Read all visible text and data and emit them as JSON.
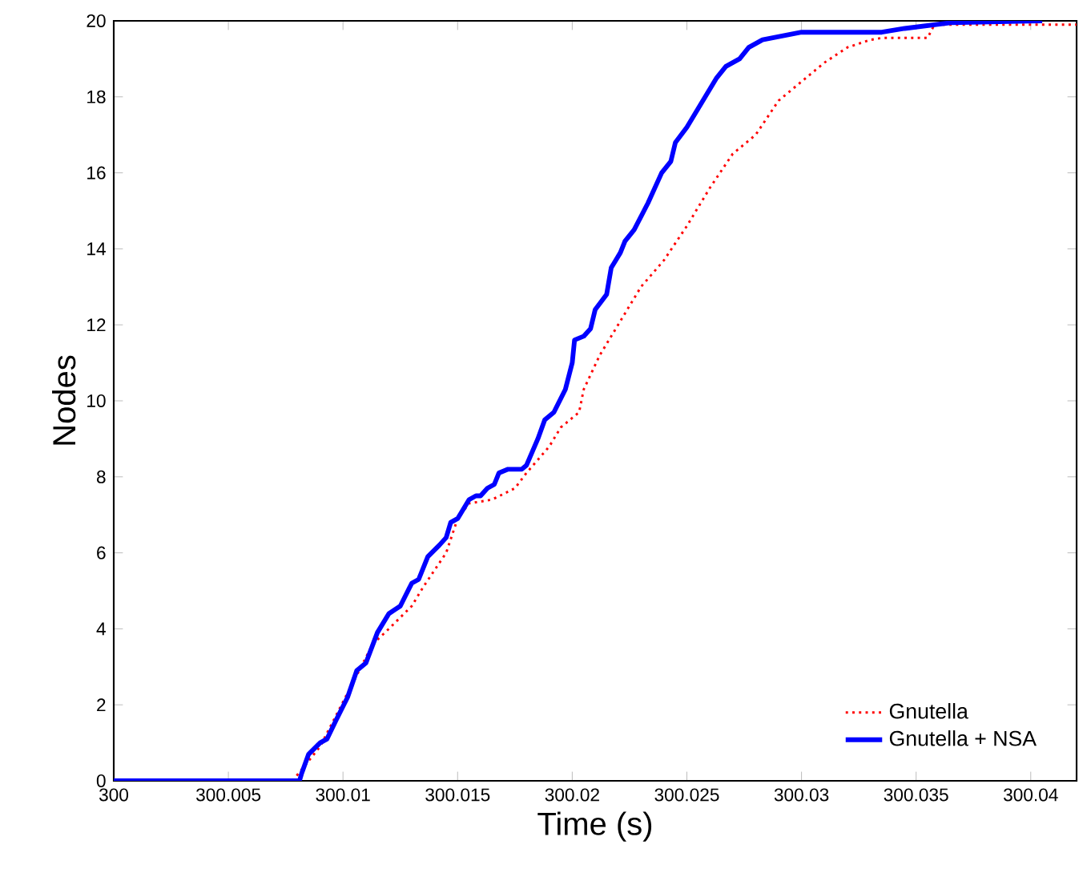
{
  "chart_data": {
    "type": "line",
    "xlabel": "Time (s)",
    "ylabel": "Nodes",
    "xlim": [
      300,
      300.042
    ],
    "ylim": [
      0,
      20
    ],
    "xticks": [
      300,
      300.005,
      300.01,
      300.015,
      300.02,
      300.025,
      300.03,
      300.035,
      300.04
    ],
    "yticks": [
      0,
      2,
      4,
      6,
      8,
      10,
      12,
      14,
      16,
      18,
      20
    ],
    "grid": false,
    "legend": "bottom right",
    "marker": "none",
    "series": [
      {
        "name": "Gnutella",
        "color": "#ff0000",
        "line_style": "dotted",
        "x": [
          300,
          300.0078,
          300.0082,
          300.009,
          300.0113,
          300.012,
          300.013,
          300.0135,
          300.0145,
          300.015,
          300.0155,
          300.0165,
          300.0175,
          300.018,
          300.019,
          300.0195,
          300.0203,
          300.0205,
          300.0212,
          300.022,
          300.023,
          300.024,
          300.025,
          300.026,
          300.027,
          300.028,
          300.029,
          300.03,
          300.031,
          300.032,
          300.033,
          300.0335,
          300.0355,
          300.0358,
          300.042
        ],
        "values": [
          0,
          0,
          0.3,
          0.9,
          3.6,
          4.0,
          4.6,
          5.1,
          6.0,
          6.9,
          7.3,
          7.4,
          7.7,
          8.1,
          8.8,
          9.3,
          9.7,
          10.3,
          11.2,
          12.0,
          13.0,
          13.7,
          14.6,
          15.6,
          16.5,
          17.0,
          17.9,
          18.4,
          18.9,
          19.3,
          19.5,
          19.55,
          19.55,
          19.9,
          19.9
        ]
      },
      {
        "name": "Gnutella + NSA",
        "color": "#0000ff",
        "line_style": "solid",
        "x": [
          300,
          300.0081,
          300.0082,
          300.0085,
          300.009,
          300.0093,
          300.0097,
          300.0102,
          300.0106,
          300.011,
          300.0115,
          300.012,
          300.0125,
          300.013,
          300.0133,
          300.0137,
          300.0142,
          300.0145,
          300.0147,
          300.015,
          300.0155,
          300.0158,
          300.016,
          300.0163,
          300.0166,
          300.0168,
          300.0172,
          300.0178,
          300.018,
          300.0185,
          300.0188,
          300.0192,
          300.0197,
          300.02,
          300.0201,
          300.0205,
          300.0208,
          300.021,
          300.0215,
          300.0217,
          300.0221,
          300.0223,
          300.0227,
          300.0233,
          300.0239,
          300.0243,
          300.0245,
          300.025,
          300.0255,
          300.0258,
          300.0263,
          300.0267,
          300.0273,
          300.0277,
          300.0283,
          300.03,
          300.0335,
          300.0345,
          300.0365,
          300.0405
        ],
        "values": [
          0,
          0,
          0.2,
          0.7,
          1.0,
          1.1,
          1.6,
          2.2,
          2.9,
          3.1,
          3.9,
          4.4,
          4.6,
          5.2,
          5.3,
          5.9,
          6.2,
          6.4,
          6.8,
          6.9,
          7.4,
          7.5,
          7.5,
          7.7,
          7.8,
          8.1,
          8.2,
          8.2,
          8.3,
          9.0,
          9.5,
          9.7,
          10.3,
          11.0,
          11.6,
          11.7,
          11.9,
          12.4,
          12.8,
          13.5,
          13.9,
          14.2,
          14.5,
          15.2,
          16.0,
          16.3,
          16.8,
          17.2,
          17.7,
          18.0,
          18.5,
          18.8,
          19.0,
          19.3,
          19.5,
          19.7,
          19.7,
          19.8,
          19.95,
          20
        ]
      }
    ]
  }
}
